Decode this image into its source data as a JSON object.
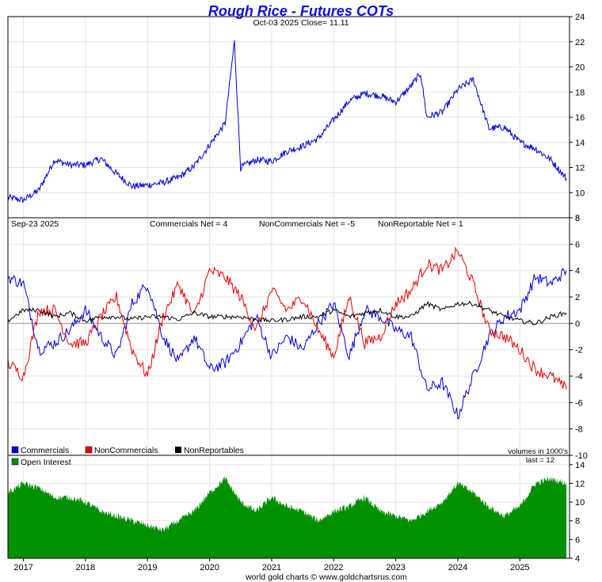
{
  "header": {
    "title": "Rough Rice - Futures COTs",
    "subtitle": "Oct-03  2025   Close= 11.11"
  },
  "footer": {
    "credit": "world gold charts © www.goldchartsrus.com"
  },
  "colors": {
    "price": "#0000dd",
    "commercials": "#0000dd",
    "noncommercials": "#ee0000",
    "nonreportables": "#000000",
    "open_interest": "#009000"
  },
  "chart_data": [
    {
      "panel": "price",
      "type": "line",
      "title": "Rough Rice - Futures COTs",
      "date": "Oct-03  2025",
      "close_label": "Close= 11.11",
      "ylim": [
        8,
        24
      ],
      "yticks": [
        "8",
        "10",
        "12",
        "14",
        "16",
        "18",
        "20",
        "22",
        "24"
      ],
      "x": [
        2016.75,
        2017.0,
        2017.25,
        2017.5,
        2017.75,
        2018.0,
        2018.25,
        2018.5,
        2018.75,
        2019.0,
        2019.25,
        2019.5,
        2019.75,
        2020.0,
        2020.25,
        2020.4,
        2020.5,
        2020.75,
        2021.0,
        2021.25,
        2021.5,
        2021.75,
        2022.0,
        2022.25,
        2022.5,
        2022.75,
        2023.0,
        2023.25,
        2023.4,
        2023.5,
        2023.75,
        2024.0,
        2024.25,
        2024.5,
        2024.75,
        2025.0,
        2025.25,
        2025.5,
        2025.75
      ],
      "values": [
        9.6,
        9.4,
        10.2,
        12.6,
        12.2,
        12.2,
        12.7,
        11.5,
        10.5,
        10.6,
        10.8,
        11.2,
        12.1,
        13.8,
        15.5,
        22.0,
        12.0,
        12.6,
        12.5,
        13.3,
        13.7,
        14.3,
        15.8,
        17.3,
        17.9,
        17.7,
        17.2,
        18.5,
        19.5,
        16.0,
        16.4,
        18.2,
        19.0,
        15.1,
        15.2,
        14.0,
        13.5,
        12.6,
        11.11
      ]
    },
    {
      "panel": "cot",
      "type": "line",
      "date": "Sep-23  2025",
      "ylim": [
        -10,
        8
      ],
      "yticks": [
        "-10",
        "-8",
        "-6",
        "-4",
        "-2",
        "0",
        "2",
        "4",
        "6",
        "8"
      ],
      "summary": [
        {
          "label": "Commercials Net = 4"
        },
        {
          "label": "NonCommercials Net = -5"
        },
        {
          "label": "NonReportable Net = 1"
        }
      ],
      "units_note": "volumes in 1000's",
      "legend": [
        "Commercials",
        "NonCommercials",
        "NonReportables"
      ],
      "x": [
        2016.75,
        2017.0,
        2017.25,
        2017.5,
        2017.75,
        2018.0,
        2018.25,
        2018.5,
        2018.75,
        2019.0,
        2019.25,
        2019.5,
        2019.75,
        2020.0,
        2020.25,
        2020.5,
        2020.75,
        2021.0,
        2021.25,
        2021.5,
        2021.75,
        2022.0,
        2022.25,
        2022.5,
        2022.75,
        2023.0,
        2023.25,
        2023.5,
        2023.75,
        2024.0,
        2024.25,
        2024.5,
        2024.75,
        2025.0,
        2025.25,
        2025.5,
        2025.75
      ],
      "series": [
        {
          "name": "Commercials",
          "values": [
            3.5,
            3.0,
            -2.0,
            -1.5,
            -0.5,
            1.0,
            -1.0,
            -2.5,
            1.5,
            3.0,
            -1.0,
            -3.0,
            -1.0,
            -3.5,
            -3.0,
            -1.5,
            0.5,
            -2.5,
            -1.0,
            -2.0,
            0.0,
            1.5,
            -2.5,
            1.0,
            0.5,
            -0.5,
            -1.0,
            -5.0,
            -4.5,
            -7.0,
            -4.0,
            -1.0,
            0.5,
            1.0,
            3.5,
            3.0,
            4.0
          ]
        },
        {
          "name": "NonCommercials",
          "values": [
            -3.0,
            -4.0,
            1.0,
            1.0,
            -1.5,
            -1.5,
            0.5,
            2.0,
            -2.0,
            -4.0,
            0.5,
            3.0,
            0.5,
            4.0,
            3.5,
            2.0,
            -0.5,
            2.5,
            1.0,
            2.0,
            -0.5,
            -2.5,
            2.0,
            -1.5,
            -1.0,
            1.5,
            2.5,
            4.5,
            4.0,
            5.5,
            3.0,
            -0.5,
            -1.0,
            -2.0,
            -3.5,
            -4.0,
            -5.0
          ]
        },
        {
          "name": "NonReportables",
          "values": [
            0.2,
            1.0,
            1.0,
            0.5,
            0.8,
            0.2,
            0.5,
            0.5,
            0.3,
            0.5,
            0.5,
            0.3,
            0.8,
            0.5,
            0.5,
            0.5,
            0.3,
            0.2,
            0.3,
            0.5,
            0.5,
            1.0,
            0.5,
            0.8,
            1.0,
            0.5,
            0.5,
            1.5,
            1.0,
            1.5,
            1.5,
            1.0,
            0.5,
            0.2,
            0.0,
            0.5,
            0.8
          ]
        }
      ]
    },
    {
      "panel": "open_interest",
      "type": "area",
      "legend": [
        "Open Interest"
      ],
      "last_label": "last = 12",
      "ylim": [
        4,
        15
      ],
      "yticks": [
        "4",
        "6",
        "8",
        "10",
        "12",
        "14"
      ],
      "x": [
        2016.75,
        2017.0,
        2017.25,
        2017.5,
        2017.75,
        2018.0,
        2018.25,
        2018.5,
        2018.75,
        2019.0,
        2019.25,
        2019.5,
        2019.75,
        2020.0,
        2020.25,
        2020.5,
        2020.75,
        2021.0,
        2021.25,
        2021.5,
        2021.75,
        2022.0,
        2022.25,
        2022.5,
        2022.75,
        2023.0,
        2023.25,
        2023.5,
        2023.75,
        2024.0,
        2024.25,
        2024.5,
        2024.75,
        2025.0,
        2025.25,
        2025.5,
        2025.75
      ],
      "values": [
        11.0,
        12.0,
        11.5,
        10.5,
        10.5,
        10.0,
        9.0,
        8.5,
        8.0,
        7.5,
        7.0,
        8.0,
        9.0,
        11.0,
        12.5,
        10.0,
        9.0,
        10.5,
        9.5,
        9.0,
        8.0,
        9.0,
        9.5,
        10.5,
        9.0,
        8.5,
        8.0,
        9.0,
        10.0,
        12.0,
        11.0,
        9.5,
        8.5,
        9.5,
        12.0,
        12.5,
        12.0
      ]
    }
  ],
  "x_axis": {
    "ticks": [
      {
        "year": 2017,
        "label": "2017"
      },
      {
        "year": 2018,
        "label": "2018"
      },
      {
        "year": 2019,
        "label": "2019"
      },
      {
        "year": 2020,
        "label": "2020"
      },
      {
        "year": 2021,
        "label": "2021"
      },
      {
        "year": 2022,
        "label": "2022"
      },
      {
        "year": 2023,
        "label": "2023"
      },
      {
        "year": 2024,
        "label": "2024"
      },
      {
        "year": 2025,
        "label": "2025"
      }
    ],
    "range": [
      2016.75,
      2025.8
    ]
  }
}
